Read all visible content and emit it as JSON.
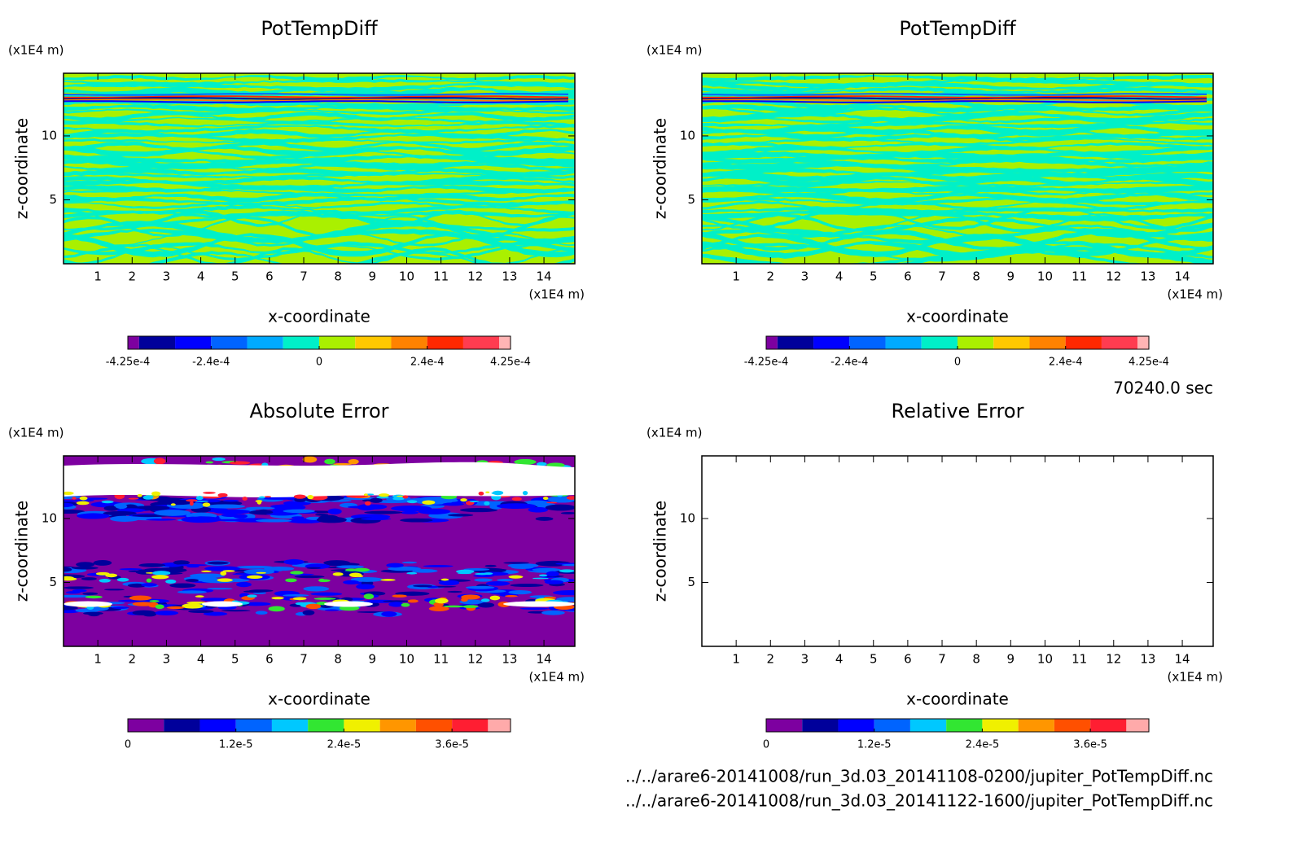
{
  "chart_data": [
    {
      "type": "contour",
      "title": "PotTempDiff",
      "xlabel": "x-coordinate",
      "ylabel": "z-coordinate",
      "xunit": "(x1E4 m)",
      "yunit": "(x1E4 m)",
      "xlim": [
        0,
        14.9
      ],
      "ylim": [
        0,
        14.9
      ],
      "xticks": [
        1,
        2,
        3,
        4,
        5,
        6,
        7,
        8,
        9,
        10,
        11,
        12,
        13,
        14
      ],
      "yticks": [
        5,
        10
      ],
      "colorbar": {
        "bounds": [
          -0.000425,
          -0.0004,
          -0.00032,
          -0.00024,
          -0.00016,
          -8e-05,
          0,
          8e-05,
          0.00016,
          0.00024,
          0.00032,
          0.0004,
          0.000425
        ],
        "colors": [
          "#7d00a0",
          "#00009b",
          "#0000ff",
          "#0064ff",
          "#00aaff",
          "#00f0c8",
          "#aaf000",
          "#ffc800",
          "#ff8200",
          "#ff2800",
          "#ff3c50",
          "#ffb4b4"
        ],
        "ticks": [
          {
            "value": -0.000425,
            "label": "-4.25e-4"
          },
          {
            "value": -0.00024,
            "label": "-2.4e-4"
          },
          0,
          {
            "value": 0.00024,
            "label": "2.4e-4"
          },
          {
            "value": 0.000425,
            "label": "4.25e-4"
          }
        ]
      }
    },
    {
      "type": "contour",
      "title": "PotTempDiff",
      "xlabel": "x-coordinate",
      "ylabel": "z-coordinate",
      "xunit": "(x1E4 m)",
      "yunit": "(x1E4 m)",
      "xlim": [
        0,
        14.9
      ],
      "ylim": [
        0,
        14.9
      ],
      "xticks": [
        1,
        2,
        3,
        4,
        5,
        6,
        7,
        8,
        9,
        10,
        11,
        12,
        13,
        14
      ],
      "yticks": [
        5,
        10
      ],
      "colorbar": {
        "bounds": [
          -0.000425,
          -0.0004,
          -0.00032,
          -0.00024,
          -0.00016,
          -8e-05,
          0,
          8e-05,
          0.00016,
          0.00024,
          0.00032,
          0.0004,
          0.000425
        ],
        "colors": [
          "#7d00a0",
          "#00009b",
          "#0000ff",
          "#0064ff",
          "#00aaff",
          "#00f0c8",
          "#aaf000",
          "#ffc800",
          "#ff8200",
          "#ff2800",
          "#ff3c50",
          "#ffb4b4"
        ],
        "ticks": [
          {
            "value": -0.000425,
            "label": "-4.25e-4"
          },
          {
            "value": -0.00024,
            "label": "-2.4e-4"
          },
          0,
          {
            "value": 0.00024,
            "label": "2.4e-4"
          },
          {
            "value": 0.000425,
            "label": "4.25e-4"
          }
        ]
      }
    },
    {
      "type": "contour",
      "title": "Absolute Error",
      "xlabel": "x-coordinate",
      "ylabel": "z-coordinate",
      "xunit": "(x1E4 m)",
      "yunit": "(x1E4 m)",
      "xlim": [
        0,
        14.9
      ],
      "ylim": [
        0,
        14.9
      ],
      "xticks": [
        1,
        2,
        3,
        4,
        5,
        6,
        7,
        8,
        9,
        10,
        11,
        12,
        13,
        14
      ],
      "yticks": [
        5,
        10
      ],
      "colorbar": {
        "bounds": [
          0,
          4e-06,
          8e-06,
          1.2e-05,
          1.6e-05,
          2e-05,
          2.4e-05,
          2.8e-05,
          3.2e-05,
          3.6e-05,
          4e-05,
          4.25e-05
        ],
        "colors": [
          "#7d00a0",
          "#00009b",
          "#0000ff",
          "#0064ff",
          "#00c8ff",
          "#32e632",
          "#f0f000",
          "#ff9600",
          "#ff5000",
          "#ff1e32",
          "#ffaaaa"
        ],
        "ticks": [
          0,
          {
            "value": 1.2e-05,
            "label": "1.2e-5"
          },
          {
            "value": 2.4e-05,
            "label": "2.4e-5"
          },
          {
            "value": 3.6e-05,
            "label": "3.6e-5"
          }
        ]
      }
    },
    {
      "type": "contour",
      "title": "Relative Error",
      "xlabel": "x-coordinate",
      "ylabel": "z-coordinate",
      "xunit": "(x1E4 m)",
      "yunit": "(x1E4 m)",
      "xlim": [
        0,
        14.9
      ],
      "ylim": [
        0,
        14.9
      ],
      "xticks": [
        1,
        2,
        3,
        4,
        5,
        6,
        7,
        8,
        9,
        10,
        11,
        12,
        13,
        14
      ],
      "yticks": [
        5,
        10
      ],
      "colorbar": {
        "bounds": [
          0,
          4e-06,
          8e-06,
          1.2e-05,
          1.6e-05,
          2e-05,
          2.4e-05,
          2.8e-05,
          3.2e-05,
          3.6e-05,
          4e-05,
          4.25e-05
        ],
        "colors": [
          "#7d00a0",
          "#00009b",
          "#0000ff",
          "#0064ff",
          "#00c8ff",
          "#32e632",
          "#f0f000",
          "#ff9600",
          "#ff5000",
          "#ff1e32",
          "#ffaaaa"
        ],
        "ticks": [
          0,
          {
            "value": 1.2e-05,
            "label": "1.2e-5"
          },
          {
            "value": 2.4e-05,
            "label": "2.4e-5"
          },
          {
            "value": 3.6e-05,
            "label": "3.6e-5"
          }
        ]
      }
    }
  ],
  "time": "70240.0 sec",
  "files": [
    "../../arare6-20141008/run_3d.03_20141108-0200/jupiter_PotTempDiff.nc",
    "../../arare6-20141008/run_3d.03_20141122-1600/jupiter_PotTempDiff.nc"
  ]
}
